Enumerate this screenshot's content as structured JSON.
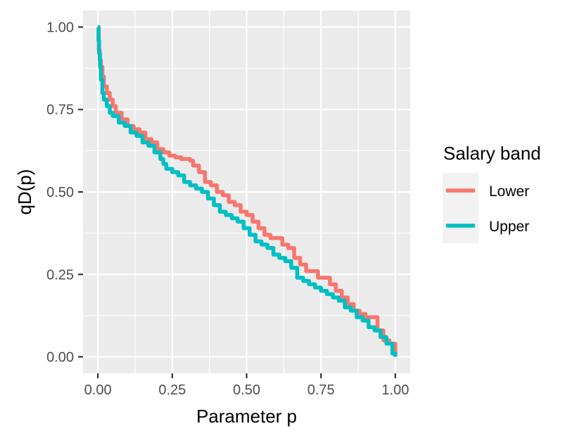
{
  "chart_data": {
    "type": "line",
    "title": "",
    "xlabel": "Parameter p",
    "ylabel": "qD(p)",
    "xlim": [
      -0.05,
      1.05
    ],
    "ylim": [
      -0.05,
      1.05
    ],
    "x_ticks": [
      "0.00",
      "0.25",
      "0.50",
      "0.75",
      "1.00"
    ],
    "y_ticks": [
      "0.00",
      "0.25",
      "0.50",
      "0.75",
      "1.00"
    ],
    "grid": true,
    "legend": {
      "title": "Salary band",
      "placement": "right"
    },
    "series": [
      {
        "name": "Lower",
        "color": "#F8766D",
        "x": [
          0.0,
          0.003,
          0.006,
          0.01,
          0.015,
          0.02,
          0.03,
          0.04,
          0.05,
          0.06,
          0.08,
          0.1,
          0.12,
          0.14,
          0.16,
          0.18,
          0.2,
          0.22,
          0.24,
          0.26,
          0.28,
          0.3,
          0.31,
          0.32,
          0.34,
          0.36,
          0.38,
          0.4,
          0.42,
          0.44,
          0.46,
          0.48,
          0.5,
          0.52,
          0.54,
          0.56,
          0.58,
          0.6,
          0.62,
          0.64,
          0.66,
          0.68,
          0.7,
          0.72,
          0.74,
          0.76,
          0.78,
          0.8,
          0.82,
          0.84,
          0.86,
          0.88,
          0.9,
          0.92,
          0.94,
          0.96,
          0.98,
          1.0
        ],
        "y": [
          1.0,
          0.93,
          0.9,
          0.88,
          0.85,
          0.82,
          0.8,
          0.78,
          0.76,
          0.74,
          0.72,
          0.7,
          0.69,
          0.68,
          0.66,
          0.65,
          0.63,
          0.62,
          0.61,
          0.605,
          0.6,
          0.6,
          0.595,
          0.58,
          0.56,
          0.53,
          0.52,
          0.5,
          0.49,
          0.47,
          0.46,
          0.44,
          0.43,
          0.41,
          0.39,
          0.37,
          0.36,
          0.36,
          0.34,
          0.33,
          0.3,
          0.28,
          0.26,
          0.26,
          0.24,
          0.24,
          0.22,
          0.2,
          0.18,
          0.16,
          0.14,
          0.13,
          0.12,
          0.12,
          0.08,
          0.05,
          0.04,
          0.01
        ]
      },
      {
        "name": "Upper",
        "color": "#00BFC4",
        "x": [
          0.0,
          0.002,
          0.004,
          0.007,
          0.01,
          0.015,
          0.02,
          0.03,
          0.04,
          0.05,
          0.07,
          0.09,
          0.11,
          0.13,
          0.15,
          0.17,
          0.19,
          0.21,
          0.22,
          0.23,
          0.25,
          0.27,
          0.29,
          0.31,
          0.33,
          0.35,
          0.37,
          0.39,
          0.41,
          0.43,
          0.45,
          0.47,
          0.49,
          0.51,
          0.53,
          0.55,
          0.57,
          0.59,
          0.61,
          0.63,
          0.65,
          0.67,
          0.69,
          0.71,
          0.73,
          0.75,
          0.77,
          0.79,
          0.81,
          0.83,
          0.85,
          0.87,
          0.89,
          0.91,
          0.93,
          0.95,
          0.97,
          0.99,
          1.0
        ],
        "y": [
          1.0,
          0.96,
          0.92,
          0.88,
          0.84,
          0.8,
          0.78,
          0.76,
          0.74,
          0.73,
          0.71,
          0.7,
          0.68,
          0.67,
          0.65,
          0.64,
          0.62,
          0.6,
          0.585,
          0.57,
          0.56,
          0.55,
          0.53,
          0.52,
          0.51,
          0.5,
          0.48,
          0.46,
          0.44,
          0.43,
          0.42,
          0.41,
          0.39,
          0.37,
          0.35,
          0.34,
          0.33,
          0.31,
          0.3,
          0.29,
          0.27,
          0.24,
          0.23,
          0.22,
          0.21,
          0.2,
          0.19,
          0.18,
          0.17,
          0.15,
          0.14,
          0.12,
          0.11,
          0.09,
          0.08,
          0.06,
          0.04,
          0.01,
          0.0
        ]
      }
    ]
  }
}
